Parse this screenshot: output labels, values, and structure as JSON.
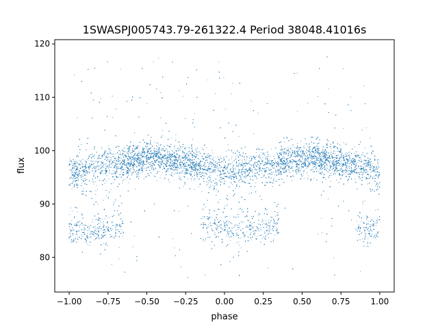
{
  "chart_data": {
    "type": "scatter",
    "title": "1SWASPJ005743.79-261322.4 Period 38048.41016s",
    "xlabel": "phase",
    "ylabel": "flux",
    "xlim": [
      -1.093,
      1.093
    ],
    "ylim": [
      73.5,
      120.8
    ],
    "xticks": [
      -1.0,
      -0.75,
      -0.5,
      -0.25,
      0.0,
      0.25,
      0.5,
      0.75,
      1.0
    ],
    "xtick_labels": [
      "−1.00",
      "−0.75",
      "−0.50",
      "−0.25",
      "0.00",
      "0.25",
      "0.50",
      "0.75",
      "1.00"
    ],
    "yticks": [
      80,
      90,
      100,
      110,
      120
    ],
    "ytick_labels": [
      "80",
      "90",
      "100",
      "110",
      "120"
    ],
    "grid": false,
    "color": "#1f77b4",
    "binned_trend": {
      "x": [
        -1.0,
        -0.9,
        -0.8,
        -0.7,
        -0.6,
        -0.5,
        -0.4,
        -0.3,
        -0.2,
        -0.1,
        0.0,
        0.1,
        0.2,
        0.3,
        0.4,
        0.5,
        0.6,
        0.7,
        0.8,
        0.9,
        1.0
      ],
      "main_band_flux": [
        96,
        96.5,
        97,
        97.5,
        98,
        98.5,
        98.5,
        98,
        97.5,
        97,
        96,
        96.5,
        97,
        97.5,
        98,
        98.5,
        98.5,
        98,
        97.5,
        97,
        96
      ],
      "eclipse_flux": [
        85,
        85,
        85,
        85.5,
        null,
        null,
        null,
        null,
        null,
        86,
        85,
        85,
        85,
        86,
        null,
        null,
        null,
        null,
        null,
        85.5,
        85
      ]
    }
  }
}
